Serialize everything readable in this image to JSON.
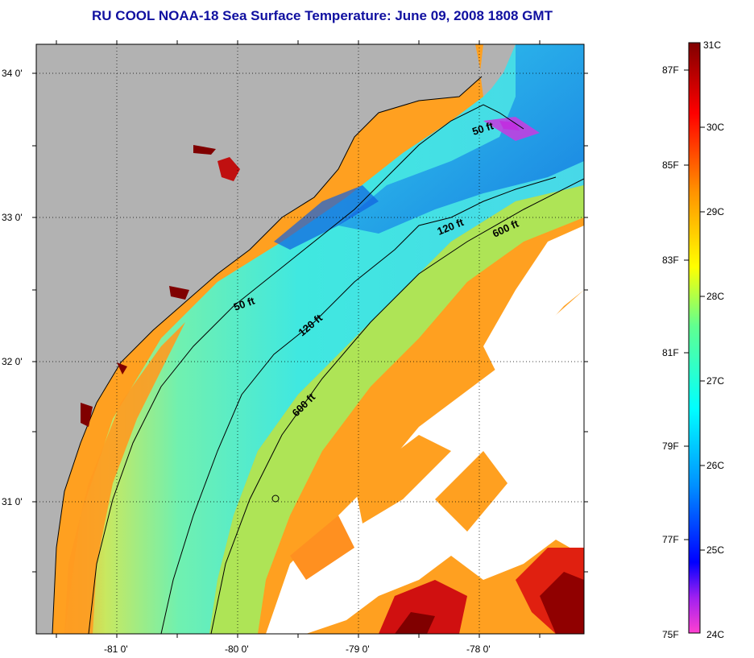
{
  "title": "RU COOL  NOAA-18  Sea Surface Temperature:  June 09, 2008 1808 GMT",
  "map": {
    "lat_ticks": [
      "34 0'",
      "33 0'",
      "32 0'",
      "31 0'"
    ],
    "lon_ticks": [
      "-81 0'",
      "-80 0'",
      "-79 0'",
      "-78 0'"
    ],
    "isobaths": [
      {
        "label": "50 ft"
      },
      {
        "label": "50 ft"
      },
      {
        "label": "120 ft"
      },
      {
        "label": "120 ft"
      },
      {
        "label": "600 ft"
      },
      {
        "label": "600 ft"
      }
    ]
  },
  "colorbar": {
    "fahrenheit": [
      "87F",
      "85F",
      "83F",
      "81F",
      "79F",
      "77F",
      "75F"
    ],
    "celsius": [
      "31C",
      "30C",
      "29C",
      "28C",
      "27C",
      "26C",
      "25C",
      "24C"
    ],
    "colors": [
      "#ff40d0",
      "#a020f0",
      "#0000ff",
      "#0090ff",
      "#00ffff",
      "#60ff90",
      "#ffff00",
      "#ff9000",
      "#ff0000",
      "#800000"
    ]
  },
  "land_color": "#b2b2b2",
  "cloud_color": "#ffffff"
}
